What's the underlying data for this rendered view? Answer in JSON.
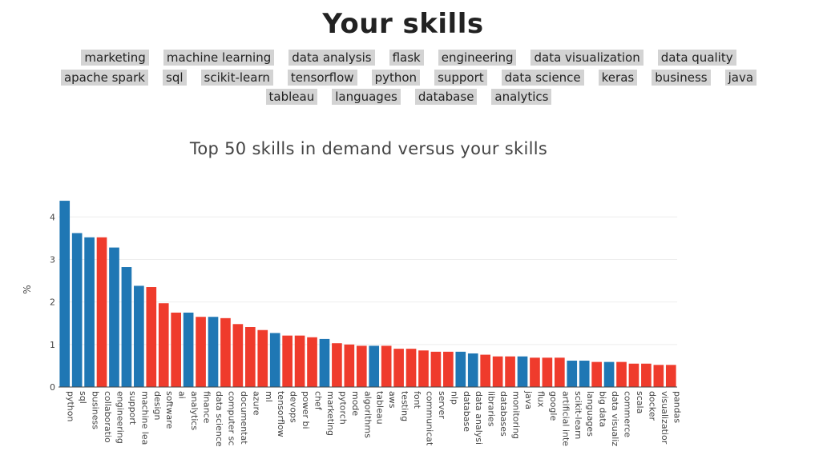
{
  "header": {
    "title": "Your skills"
  },
  "skills": [
    "marketing",
    "machine learning",
    "data analysis",
    "flask",
    "engineering",
    "data visualization",
    "data quality",
    "apache spark",
    "sql",
    "scikit-learn",
    "tensorflow",
    "python",
    "support",
    "data science",
    "keras",
    "business",
    "java",
    "tableau",
    "languages",
    "database",
    "analytics"
  ],
  "colors": {
    "match": "#1f77b4",
    "missing": "#ef3b2c"
  },
  "chart_data": {
    "type": "bar",
    "title": "Top 50 skills in demand versus your skills",
    "xlabel": "",
    "ylabel": "%",
    "ylim": [
      0,
      4.4
    ],
    "yticks": [
      0,
      1,
      2,
      3,
      4
    ],
    "grid": true,
    "categories": [
      "python",
      "sql",
      "business",
      "collaboratio",
      "engineering",
      "support",
      "machine lea",
      "design",
      "software",
      "ai",
      "analytics",
      "finance",
      "data science",
      "computer sc",
      "documentat",
      "azure",
      "ml",
      "tensorflow",
      "devops",
      "power bi",
      "chef",
      "marketing",
      "pytorch",
      "mode",
      "algorithms",
      "tableau",
      "aws",
      "testing",
      "font",
      "communicat",
      "server",
      "nlp",
      "database",
      "data analysi",
      "libraries",
      "databases",
      "monitoring",
      "java",
      "flux",
      "google",
      "artificial inte",
      "scikit-learn",
      "languages",
      "big data",
      "data visualiz",
      "commerce",
      "scala",
      "docker",
      "visualizatior",
      "pandas"
    ],
    "values": [
      4.38,
      3.62,
      3.52,
      3.52,
      3.28,
      2.82,
      2.38,
      2.35,
      1.97,
      1.75,
      1.75,
      1.65,
      1.65,
      1.62,
      1.48,
      1.41,
      1.34,
      1.27,
      1.21,
      1.21,
      1.17,
      1.13,
      1.03,
      1.0,
      0.97,
      0.97,
      0.97,
      0.9,
      0.9,
      0.86,
      0.83,
      0.83,
      0.83,
      0.79,
      0.76,
      0.72,
      0.72,
      0.72,
      0.69,
      0.69,
      0.69,
      0.62,
      0.62,
      0.59,
      0.59,
      0.59,
      0.55,
      0.55,
      0.52,
      0.52
    ],
    "has_skill": [
      true,
      true,
      true,
      false,
      true,
      true,
      true,
      false,
      false,
      false,
      true,
      false,
      true,
      false,
      false,
      false,
      false,
      true,
      false,
      false,
      false,
      true,
      false,
      false,
      false,
      true,
      false,
      false,
      false,
      false,
      false,
      false,
      true,
      true,
      false,
      false,
      false,
      true,
      false,
      false,
      false,
      true,
      true,
      false,
      true,
      false,
      false,
      false,
      false,
      false
    ]
  }
}
